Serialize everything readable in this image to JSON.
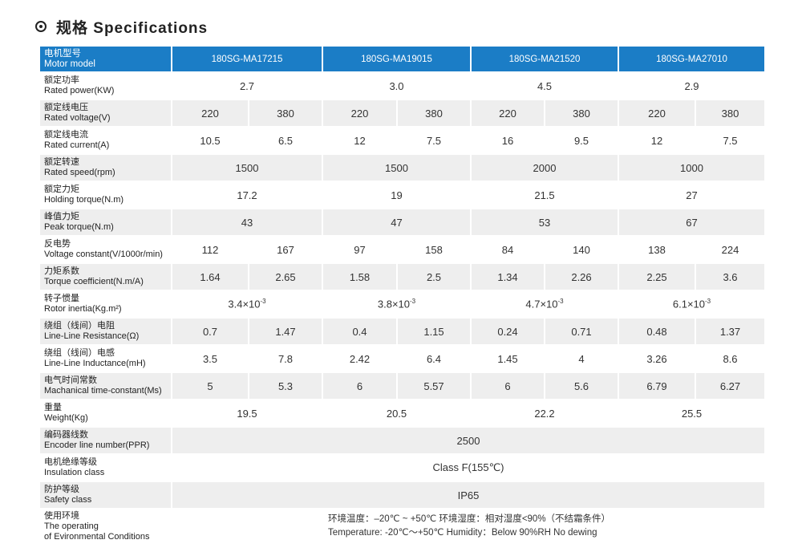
{
  "title": "规格 Specifications",
  "header": {
    "label_zh": "电机型号",
    "label_en": "Motor model",
    "models": [
      "180SG-MA17215",
      "180SG-MA19015",
      "180SG-MA21520",
      "180SG-MA27010"
    ]
  },
  "rows": [
    {
      "zh": "额定功率",
      "en": "Rated power(KW)",
      "merged": [
        "2.7",
        "3.0",
        "4.5",
        "2.9"
      ]
    },
    {
      "zh": "额定线电压",
      "en": "Rated voltage(V)",
      "split": [
        "220",
        "380",
        "220",
        "380",
        "220",
        "380",
        "220",
        "380"
      ]
    },
    {
      "zh": "额定线电流",
      "en": "Rated current(A)",
      "split": [
        "10.5",
        "6.5",
        "12",
        "7.5",
        "16",
        "9.5",
        "12",
        "7.5"
      ]
    },
    {
      "zh": "额定转速",
      "en": "Rated speed(rpm)",
      "merged": [
        "1500",
        "1500",
        "2000",
        "1000"
      ]
    },
    {
      "zh": "额定力矩",
      "en": "Holding torque(N.m)",
      "merged": [
        "17.2",
        "19",
        "21.5",
        "27"
      ]
    },
    {
      "zh": "峰值力矩",
      "en": "Peak torque(N.m)",
      "merged": [
        "43",
        "47",
        "53",
        "67"
      ]
    },
    {
      "zh": "反电势",
      "en": "Voltage constant(V/1000r/min)",
      "split": [
        "112",
        "167",
        "97",
        "158",
        "84",
        "140",
        "138",
        "224"
      ]
    },
    {
      "zh": "力矩系数",
      "en": "Torque coefficient(N.m/A)",
      "split": [
        "1.64",
        "2.65",
        "1.58",
        "2.5",
        "1.34",
        "2.26",
        "2.25",
        "3.6"
      ]
    },
    {
      "zh": "转子惯量",
      "en": "Rotor inertia(Kg.m²)",
      "inertia": [
        {
          "base": "3.4×10",
          "exp": "-3"
        },
        {
          "base": "3.8×10",
          "exp": "-3"
        },
        {
          "base": "4.7×10",
          "exp": "-3"
        },
        {
          "base": "6.1×10",
          "exp": "-3"
        }
      ]
    },
    {
      "zh": "绕组（线间）电阻",
      "en": "Line-Line Resistance(Ω)",
      "split": [
        "0.7",
        "1.47",
        "0.4",
        "1.15",
        "0.24",
        "0.71",
        "0.48",
        "1.37"
      ]
    },
    {
      "zh": "绕组（线间）电感",
      "en": "Line-Line Inductance(mH)",
      "split": [
        "3.5",
        "7.8",
        "2.42",
        "6.4",
        "1.45",
        "4",
        "3.26",
        "8.6"
      ]
    },
    {
      "zh": "电气时间常数",
      "en": "Machanical time-constant(Ms)",
      "split": [
        "5",
        "5.3",
        "6",
        "5.57",
        "6",
        "5.6",
        "6.79",
        "6.27"
      ]
    },
    {
      "zh": "重量",
      "en": "Weight(Kg)",
      "merged": [
        "19.5",
        "20.5",
        "22.2",
        "25.5"
      ]
    },
    {
      "zh": "编码器线数",
      "en": "Encoder line number(PPR)",
      "all": "2500"
    },
    {
      "zh": "电机绝缘等级",
      "en": "Insulation class",
      "all": "Class F(155℃)"
    },
    {
      "zh": "防护等级",
      "en": "Safety class",
      "all": "IP65"
    }
  ],
  "environment": {
    "zh": "使用环境",
    "en_line1": "The operating",
    "en_line2": "of Evironmental Conditions",
    "line_zh": "环境温度：–20℃ ~ +50℃   环境湿度：相对湿度<90%（不结霜条件）",
    "line_en": "Temperature: -20℃～+50℃   Humidity：Below 90%RH No dewing"
  }
}
